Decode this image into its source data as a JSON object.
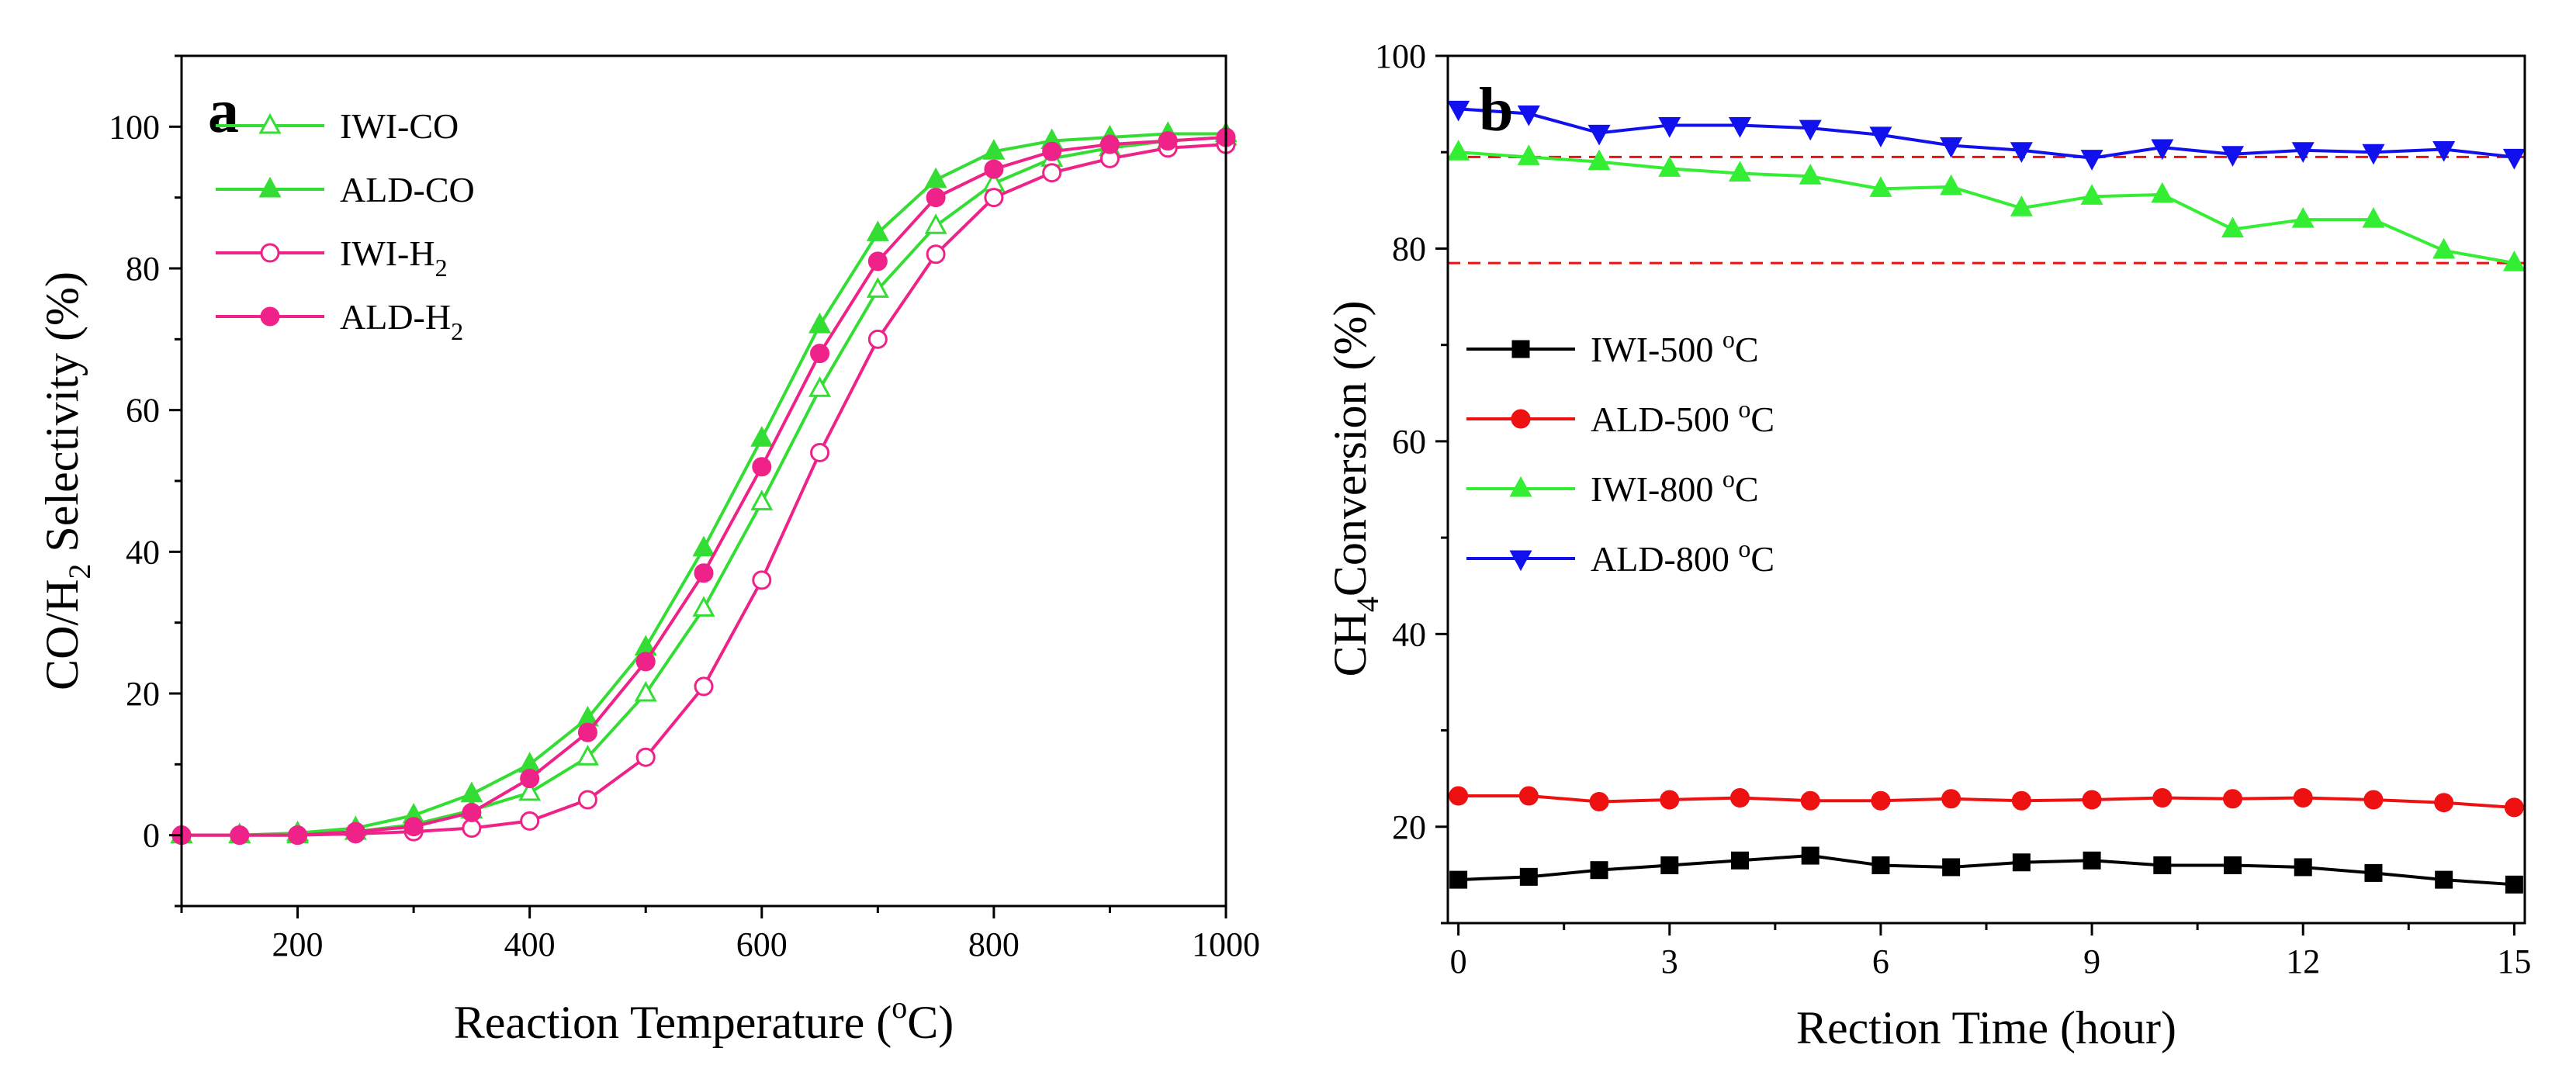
{
  "chart_data": [
    {
      "panel": "a",
      "type": "line",
      "xlabel": "Reaction Temperature (°C)",
      "ylabel": "CO/H2 Selectivity (%)",
      "xlim": [
        100,
        1000
      ],
      "ylim": [
        -10,
        110
      ],
      "xticks": [
        200,
        400,
        600,
        800,
        1000
      ],
      "yticks": [
        0,
        20,
        40,
        60,
        80,
        100
      ],
      "legend_position": "top-left",
      "series": [
        {
          "name": "IWI-CO",
          "color": "#33dd33",
          "marker": "triangle-up-open",
          "x": [
            100,
            150,
            200,
            250,
            300,
            350,
            400,
            450,
            500,
            550,
            600,
            650,
            700,
            750,
            800,
            850,
            900,
            950,
            1000
          ],
          "y": [
            0,
            0,
            0,
            0.5,
            1.5,
            3.5,
            6,
            11,
            20,
            32,
            47,
            63,
            77,
            86,
            92,
            95.5,
            97,
            98,
            98.5
          ]
        },
        {
          "name": "ALD-CO",
          "color": "#33dd33",
          "marker": "triangle-up-filled",
          "x": [
            100,
            150,
            200,
            250,
            300,
            350,
            400,
            450,
            500,
            550,
            600,
            650,
            700,
            750,
            800,
            850,
            900,
            950,
            1000
          ],
          "y": [
            0,
            0,
            0.3,
            1,
            2.8,
            5.8,
            10,
            16.5,
            26.5,
            40.5,
            56,
            72,
            85,
            92.5,
            96.5,
            98,
            98.5,
            99,
            99
          ]
        },
        {
          "name": "IWI-H2",
          "color": "#ee2288",
          "marker": "circle-open",
          "x": [
            100,
            150,
            200,
            250,
            300,
            350,
            400,
            450,
            500,
            550,
            600,
            650,
            700,
            750,
            800,
            850,
            900,
            950,
            1000
          ],
          "y": [
            0,
            0,
            0,
            0.2,
            0.5,
            1,
            2,
            5,
            11,
            21,
            36,
            54,
            70,
            82,
            90,
            93.5,
            95.5,
            97,
            97.5
          ]
        },
        {
          "name": "ALD-H2",
          "color": "#ee2288",
          "marker": "circle-filled",
          "x": [
            100,
            150,
            200,
            250,
            300,
            350,
            400,
            450,
            500,
            550,
            600,
            650,
            700,
            750,
            800,
            850,
            900,
            950,
            1000
          ],
          "y": [
            0,
            0,
            0,
            0.5,
            1.2,
            3.2,
            8,
            14.5,
            24.5,
            37,
            52,
            68,
            81,
            90,
            94,
            96.5,
            97.5,
            98,
            98.5
          ]
        }
      ]
    },
    {
      "panel": "b",
      "type": "line",
      "xlabel": "Rection Time (hour)",
      "ylabel": "CH4 Conversion (%)",
      "xlim": [
        -0.15,
        15.15
      ],
      "ylim": [
        10,
        100
      ],
      "xticks": [
        0,
        3,
        6,
        9,
        12,
        15
      ],
      "yticks": [
        20,
        40,
        60,
        80,
        100
      ],
      "reference_lines": [
        89.5,
        78.5
      ],
      "reference_line_color": "#ee1111",
      "legend_position": "center-left",
      "series": [
        {
          "name": "IWI-500 °C",
          "color": "#000000",
          "marker": "square",
          "x": [
            0,
            1,
            2,
            3,
            4,
            5,
            6,
            7,
            8,
            9,
            10,
            11,
            12,
            13,
            14,
            15
          ],
          "y": [
            14.5,
            14.8,
            15.5,
            16,
            16.5,
            17,
            16,
            15.8,
            16.3,
            16.5,
            16,
            16,
            15.8,
            15.2,
            14.5,
            14
          ]
        },
        {
          "name": "ALD-500 °C",
          "color": "#ee1111",
          "marker": "circle",
          "x": [
            0,
            1,
            2,
            3,
            4,
            5,
            6,
            7,
            8,
            9,
            10,
            11,
            12,
            13,
            14,
            15
          ],
          "y": [
            23.2,
            23.2,
            22.6,
            22.8,
            23,
            22.7,
            22.7,
            22.9,
            22.7,
            22.8,
            23,
            22.9,
            23,
            22.8,
            22.5,
            22
          ]
        },
        {
          "name": "IWI-800 °C",
          "color": "#33ee33",
          "marker": "triangle-up",
          "x": [
            0,
            1,
            2,
            3,
            4,
            5,
            6,
            7,
            8,
            9,
            10,
            11,
            12,
            13,
            14,
            15
          ],
          "y": [
            90,
            89.5,
            89,
            88.3,
            87.8,
            87.5,
            86.2,
            86.4,
            84.2,
            85.4,
            85.6,
            82,
            83,
            83,
            79.8,
            78.5
          ]
        },
        {
          "name": "ALD-800 °C",
          "color": "#1111ee",
          "marker": "triangle-down",
          "x": [
            0,
            1,
            2,
            3,
            4,
            5,
            6,
            7,
            8,
            9,
            10,
            11,
            12,
            13,
            14,
            15
          ],
          "y": [
            94.5,
            94,
            92,
            92.8,
            92.8,
            92.5,
            91.8,
            90.7,
            90.2,
            89.4,
            90.5,
            89.8,
            90.2,
            90,
            90.3,
            89.5
          ]
        }
      ]
    }
  ]
}
